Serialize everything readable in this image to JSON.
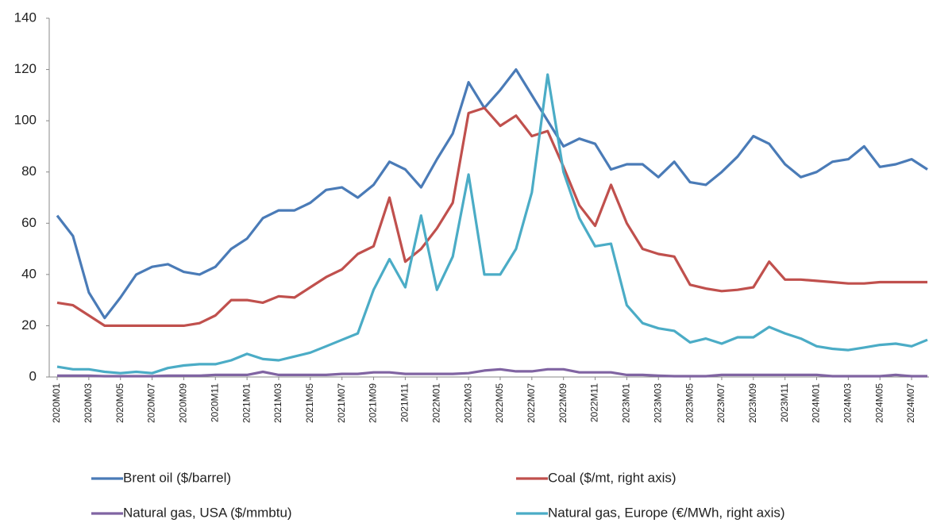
{
  "chart_data": {
    "type": "line",
    "categories": [
      "2020M01",
      null,
      "2020M03",
      null,
      "2020M05",
      null,
      "2020M07",
      null,
      "2020M09",
      null,
      "2020M11",
      null,
      "2021M01",
      null,
      "2021M03",
      null,
      "2021M05",
      null,
      "2021M07",
      null,
      "2021M09",
      null,
      "2021M11",
      null,
      "2022M01",
      null,
      "2022M03",
      null,
      "2022M05",
      null,
      "2022M07",
      null,
      "2022M09",
      null,
      "2022M11",
      null,
      "2023M01",
      null,
      "2023M03",
      null,
      "2023M05",
      null,
      "2023M07",
      null,
      "2023M09",
      null,
      "2023M11",
      null,
      "2024M01",
      null,
      "2024M03",
      null,
      "2024M05",
      null,
      "2024M07",
      null
    ],
    "series": [
      {
        "name": "Brent oil ($/barrel)",
        "color": "#4a7bb7",
        "values": [
          63,
          55,
          33,
          23,
          31,
          40,
          43,
          44,
          41,
          40,
          43,
          50,
          54,
          62,
          65,
          65,
          68,
          73,
          74,
          70,
          75,
          84,
          81,
          74,
          85,
          95,
          115,
          105,
          112,
          120,
          110,
          100,
          90,
          93,
          91,
          81,
          83,
          83,
          78,
          84,
          76,
          75,
          80,
          86,
          94,
          91,
          83,
          78,
          80,
          84,
          85,
          90,
          82,
          83,
          85,
          81
        ]
      },
      {
        "name": "Coal ($/mt, right axis)",
        "color": "#c0504d",
        "values": [
          29,
          28,
          24,
          20,
          20,
          20,
          20,
          20,
          20,
          21,
          24,
          30,
          30,
          29,
          31.5,
          31,
          35,
          39,
          42,
          48,
          51,
          70,
          45,
          50,
          58,
          68,
          103,
          105,
          98,
          102,
          94,
          96,
          82,
          67,
          59,
          75,
          60,
          50,
          48,
          47,
          36,
          34.5,
          33.5,
          34,
          35,
          45,
          38,
          38,
          37.5,
          37,
          36.5,
          36.5,
          37,
          37,
          37,
          37
        ]
      },
      {
        "name": "Natural gas, USA ($/mmbtu)",
        "color": "#8064a2",
        "values": [
          0.5,
          0.5,
          0.5,
          0.3,
          0.3,
          0.3,
          0.3,
          0.5,
          0.5,
          0.5,
          0.8,
          0.8,
          0.8,
          2,
          0.8,
          0.8,
          0.8,
          0.8,
          1.2,
          1.2,
          1.8,
          1.8,
          1.2,
          1.2,
          1.2,
          1.2,
          1.5,
          2.5,
          3,
          2.2,
          2.2,
          3,
          3,
          1.8,
          1.8,
          1.8,
          0.8,
          0.8,
          0.5,
          0.3,
          0.3,
          0.3,
          0.8,
          0.8,
          0.8,
          0.8,
          0.8,
          0.8,
          0.8,
          0.3,
          0.3,
          0.3,
          0.3,
          0.8,
          0.3,
          0.3
        ]
      },
      {
        "name": "Natural gas, Europe (€/MWh, right axis)",
        "color": "#4bacc6",
        "values": [
          4,
          3,
          3,
          2,
          1.5,
          2,
          1.5,
          3.5,
          4.5,
          5,
          5,
          6.5,
          9,
          7,
          6.5,
          8,
          9.5,
          12,
          14.5,
          17,
          34,
          46,
          35,
          63,
          34,
          47,
          79,
          40,
          40,
          50,
          72,
          118,
          80,
          62,
          51,
          52,
          28,
          21,
          19,
          18,
          13.5,
          15,
          13,
          15.5,
          15.5,
          19.5,
          17,
          15,
          12,
          11,
          10.5,
          11.5,
          12.5,
          13,
          12,
          14.5
        ]
      }
    ],
    "ylim": [
      0,
      140
    ],
    "yticks": [
      0,
      20,
      40,
      60,
      80,
      100,
      120,
      140
    ],
    "grid": false
  }
}
